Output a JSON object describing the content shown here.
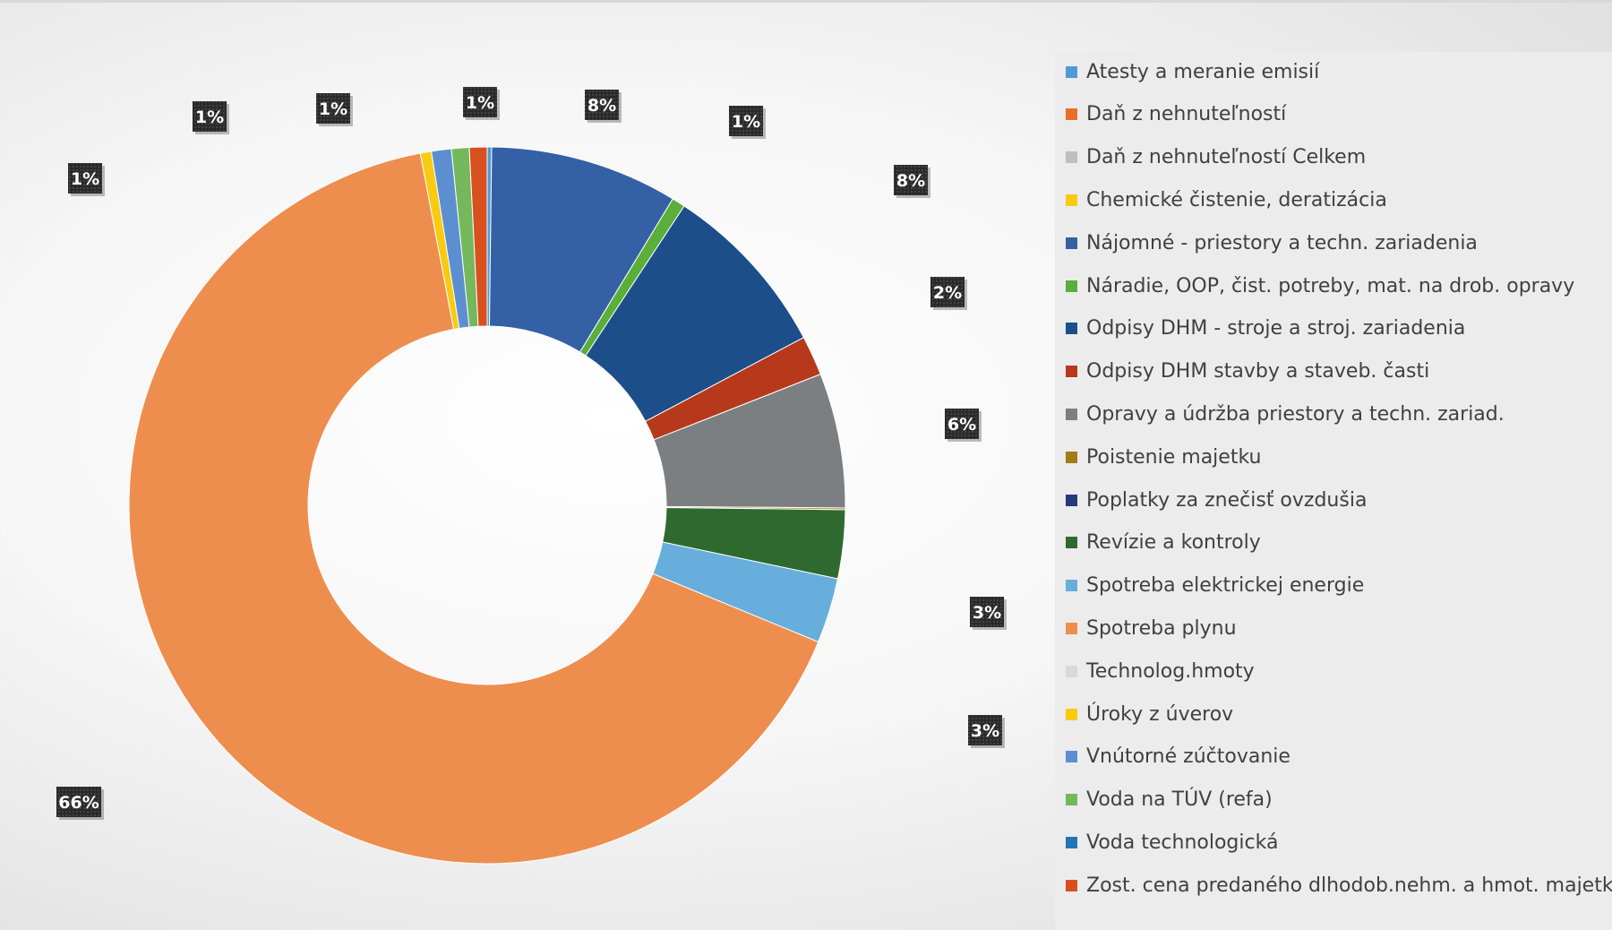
{
  "chart_data": {
    "type": "pie",
    "variant": "doughnut",
    "title": "",
    "legend_position": "right",
    "slices": [
      {
        "name": "Atesty a meranie emisií",
        "value": 0.2,
        "label": "",
        "color": "#4E9BD6"
      },
      {
        "name": "Nájomné -  priestory a techn. zariadenia",
        "value": 8.5,
        "label": "8%",
        "color": "#3460A6"
      },
      {
        "name": "Náradie, OOP, čist. potreby, mat. na drob. opravy",
        "value": 0.6,
        "label": "1%",
        "color": "#5AAE3A"
      },
      {
        "name": "Odpisy DHM - stroje a stroj. zariadenia",
        "value": 8.0,
        "label": "8%",
        "color": "#1C4F8A"
      },
      {
        "name": "Odpisy DHM stavby a staveb. časti",
        "value": 1.8,
        "label": "2%",
        "color": "#B5391A"
      },
      {
        "name": "Opravy a údržba priestory a techn. zariad.",
        "value": 6.1,
        "label": "6%",
        "color": "#7B7F82"
      },
      {
        "name": "Poistenie majetku",
        "value": 0.08,
        "label": "",
        "color": "#A07D14"
      },
      {
        "name": "Revízie a kontroly",
        "value": 3.1,
        "label": "3%",
        "color": "#2E6A2F"
      },
      {
        "name": "Spotreba elektrickej energie",
        "value": 2.95,
        "label": "3%",
        "color": "#67AEDC"
      },
      {
        "name": "Spotreba plynu",
        "value": 66.0,
        "label": "66%",
        "color": "#EE8E4E"
      },
      {
        "name": "Úroky z úverov",
        "value": 0.5,
        "label": "1%",
        "color": "#F8CB12"
      },
      {
        "name": "Vnútorné zúčtovanie",
        "value": 0.9,
        "label": "1%",
        "color": "#5C8FD0"
      },
      {
        "name": "Voda na TÚV (refa)",
        "value": 0.8,
        "label": "1%",
        "color": "#74B85B"
      },
      {
        "name": "Zost. cena predaného dlhodob.nehm. a hmot. majetku",
        "value": 0.8,
        "label": "1%",
        "color": "#D9501F"
      }
    ],
    "legend": [
      {
        "label": "Atesty a meranie emisií",
        "color": "#4E9BD6"
      },
      {
        "label": "Daň z nehnuteľností",
        "color": "#E86E2B"
      },
      {
        "label": "Daň z nehnuteľností  Celkem",
        "color": "#BFBFBF"
      },
      {
        "label": "Chemické čistenie, deratizácia",
        "color": "#F8CB12"
      },
      {
        "label": "Nájomné -  priestory a techn. zariadenia",
        "color": "#3460A6"
      },
      {
        "label": "Náradie, OOP, čist. potreby, mat. na drob. opravy",
        "color": "#5AAE3A"
      },
      {
        "label": "Odpisy DHM - stroje a stroj. zariadenia",
        "color": "#1C4F8A"
      },
      {
        "label": "Odpisy DHM stavby a staveb. časti",
        "color": "#B5391A"
      },
      {
        "label": "Opravy a údržba priestory a techn. zariad.",
        "color": "#7B7F82"
      },
      {
        "label": "Poistenie majetku",
        "color": "#A07D14"
      },
      {
        "label": "Poplatky za znečisť ovzdušia",
        "color": "#223C7A"
      },
      {
        "label": "Revízie a kontroly",
        "color": "#2E6A2F"
      },
      {
        "label": "Spotreba elektrickej energie",
        "color": "#67AEDC"
      },
      {
        "label": "Spotreba plynu",
        "color": "#EE8E4E"
      },
      {
        "label": "Technolog.hmoty",
        "color": "#D9D9D9"
      },
      {
        "label": "Úroky z úverov",
        "color": "#F8CB12"
      },
      {
        "label": "Vnútorné zúčtovanie",
        "color": "#5C8FD0"
      },
      {
        "label": "Voda na TÚV (refa)",
        "color": "#74B85B"
      },
      {
        "label": "Voda technologická",
        "color": "#2274B5"
      },
      {
        "label": "Zost. cena predaného dlhodob.nehm. a hmot. majetku",
        "color": "#D9501F"
      }
    ],
    "label_style": {
      "background": "#2A2A2A",
      "text_color": "#FFFFFF"
    }
  }
}
